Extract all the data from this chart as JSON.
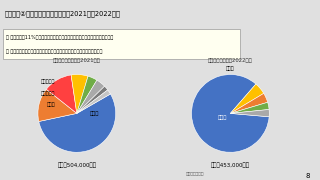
{
  "title": "１－４　②日本の塩化加里の輸入（2021年対2022年）",
  "bullet1": "・ 輸入数量は11%減少。ロシア、ベラルーシからの輸入はほぼゼロになった。",
  "bullet2": "・ ロシア・ベラルーシの減少分をカナダからの増量により対応している。",
  "chart1_title": "塩化加里の輸入量（2021年）",
  "chart2_title": "塩化加里の輸入（2022年）",
  "chart1_total": "合計　504,000トン",
  "chart2_total": "合計　453,000トン",
  "source": "資料：貿易統計",
  "chart1_sizes": [
    55,
    14,
    12,
    7,
    4,
    4,
    2,
    2
  ],
  "chart1_colors": [
    "#4472C4",
    "#ED7D31",
    "#FF4040",
    "#FFC000",
    "#70AD47",
    "#A9A9A9",
    "#7B7B7B",
    "#C5C5C5"
  ],
  "chart1_startangle": 30,
  "chart1_labels_shown": [
    "カナダ",
    "ロシア",
    "ベラルーシ",
    "イスラエル"
  ],
  "chart2_sizes": [
    85,
    5,
    4,
    3,
    3
  ],
  "chart2_colors": [
    "#4472C4",
    "#FFC000",
    "#ED7D31",
    "#70AD47",
    "#A9A9A9"
  ],
  "chart2_startangle": 355,
  "chart2_labels_shown": [
    "カナダ",
    "イスラエル",
    "ラオス"
  ],
  "page_num": "8",
  "title_bg": "#FFFFFF",
  "slide_bg": "#E0E0E0",
  "bullet_bg": "#FFFFF0",
  "person_bg": "#555555"
}
